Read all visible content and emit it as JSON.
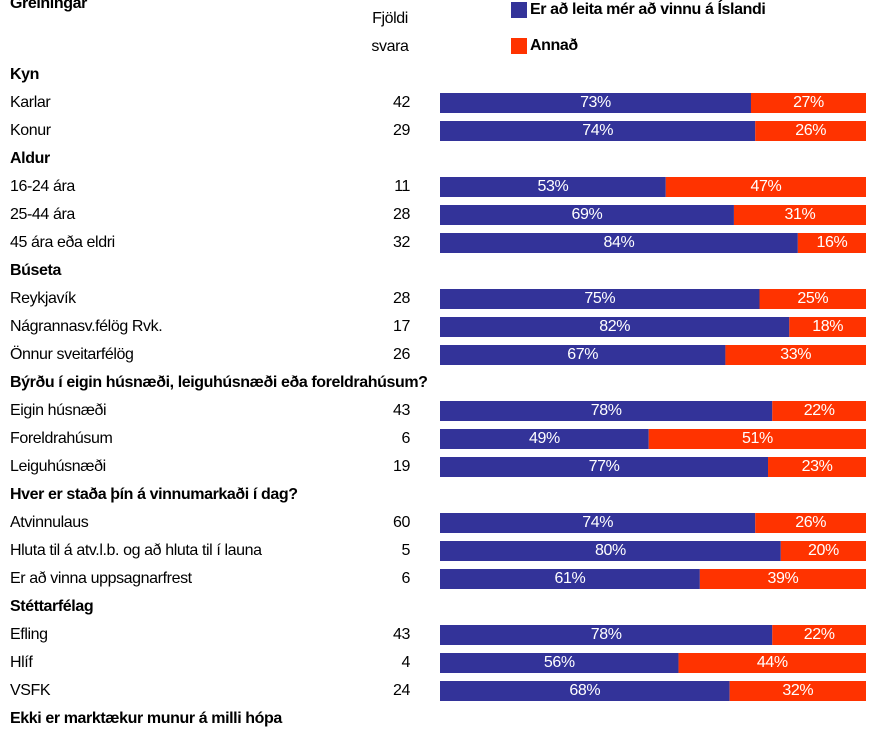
{
  "chart_data": {
    "type": "bar",
    "stacked": true,
    "orientation": "horizontal",
    "title": "Greiningar",
    "count_label": [
      "Fjöldi",
      "svara"
    ],
    "xlim": [
      0,
      100
    ],
    "series": [
      {
        "name": "Er að leita mér að vinnu á Íslandi",
        "color": "#333399"
      },
      {
        "name": "Annað",
        "color": "#ff3300"
      }
    ],
    "groups": [
      {
        "name": "Kyn",
        "categories": [
          "Karlar",
          "Konur"
        ],
        "counts": [
          42,
          29
        ],
        "values": [
          [
            73,
            74
          ],
          [
            27,
            26
          ]
        ],
        "value_labels": [
          [
            "73%",
            "74%"
          ],
          [
            "27%",
            "26%"
          ]
        ]
      },
      {
        "name": "Aldur",
        "categories": [
          "16-24 ára",
          "25-44 ára",
          "45 ára eða eldri"
        ],
        "counts": [
          11,
          28,
          32
        ],
        "values": [
          [
            53,
            69,
            84
          ],
          [
            47,
            31,
            16
          ]
        ],
        "value_labels": [
          [
            "53%",
            "69%",
            "84%"
          ],
          [
            "47%",
            "31%",
            "16%"
          ]
        ]
      },
      {
        "name": "Búseta",
        "categories": [
          "Reykjavík",
          "Nágrannasv.félög Rvk.",
          "Önnur sveitarfélög"
        ],
        "counts": [
          28,
          17,
          26
        ],
        "values": [
          [
            75,
            82,
            67
          ],
          [
            25,
            18,
            33
          ]
        ],
        "value_labels": [
          [
            "75%",
            "82%",
            "67%"
          ],
          [
            "25%",
            "18%",
            "33%"
          ]
        ]
      },
      {
        "name": "Býrðu í eigin húsnæði, leiguhúsnæði eða foreldrahúsum?",
        "categories": [
          "Eigin húsnæði",
          "Foreldrahúsum",
          "Leiguhúsnæði"
        ],
        "counts": [
          43,
          6,
          19
        ],
        "values": [
          [
            78,
            49,
            77
          ],
          [
            22,
            51,
            23
          ]
        ],
        "value_labels": [
          [
            "78%",
            "49%",
            "77%"
          ],
          [
            "22%",
            "51%",
            "23%"
          ]
        ]
      },
      {
        "name": "Hver er staða þín á vinnumarkaði í dag?",
        "categories": [
          "Atvinnulaus",
          "Hluta til á atv.l.b. og að hluta til í launa",
          "Er að vinna uppsagnarfrest"
        ],
        "counts": [
          60,
          5,
          6
        ],
        "values": [
          [
            74,
            80,
            61
          ],
          [
            26,
            20,
            39
          ]
        ],
        "value_labels": [
          [
            "74%",
            "80%",
            "61%"
          ],
          [
            "26%",
            "20%",
            "39%"
          ]
        ]
      },
      {
        "name": "Stéttarfélag",
        "categories": [
          "Efling",
          "Hlíf",
          "VSFK"
        ],
        "counts": [
          43,
          4,
          24
        ],
        "values": [
          [
            78,
            56,
            68
          ],
          [
            22,
            44,
            32
          ]
        ],
        "value_labels": [
          [
            "78%",
            "56%",
            "68%"
          ],
          [
            "22%",
            "44%",
            "32%"
          ]
        ]
      }
    ],
    "note": "Ekki er marktækur munur á milli hópa"
  }
}
